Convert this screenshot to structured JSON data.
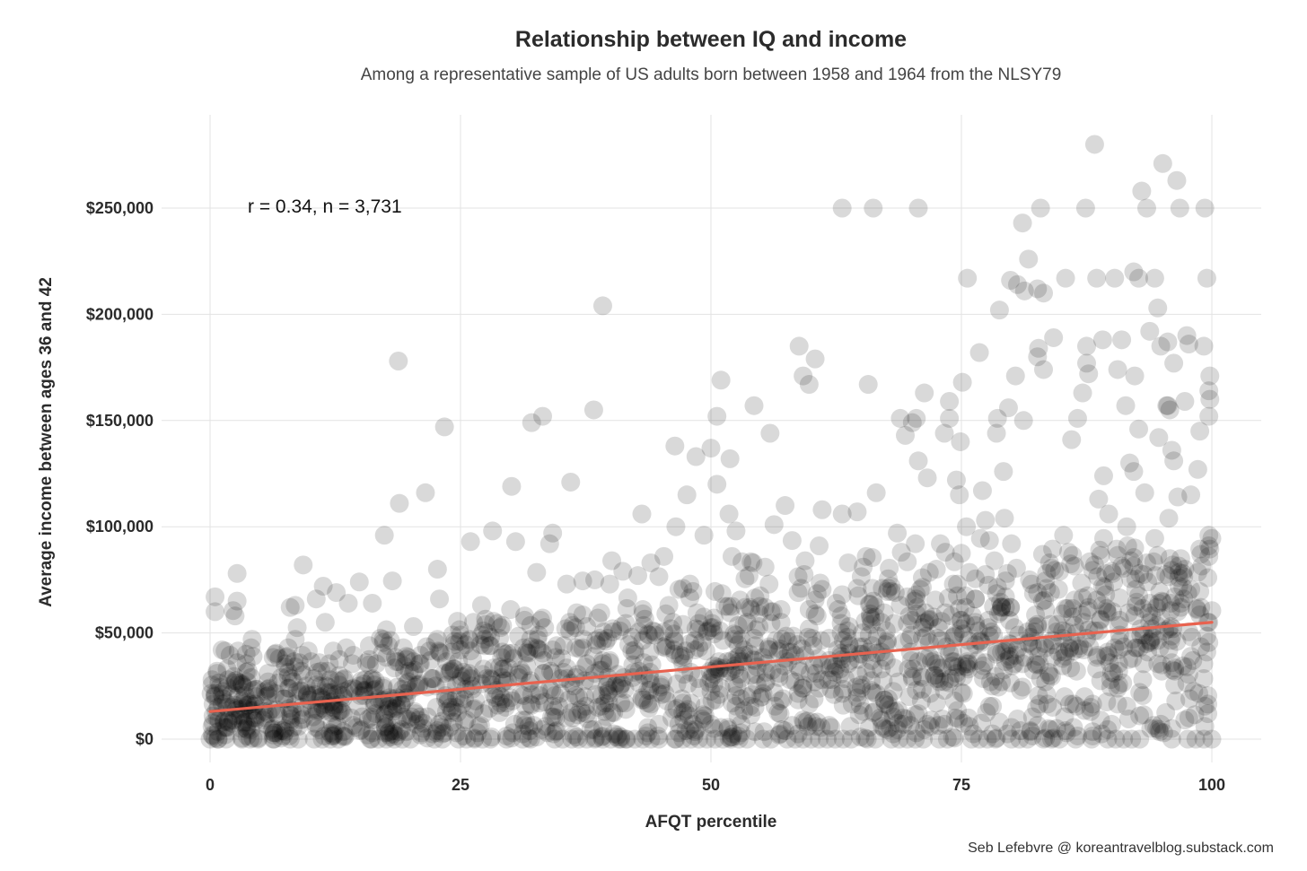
{
  "chart_data": {
    "type": "scatter",
    "title": "Relationship between IQ and income",
    "subtitle": "Among a representative sample of US adults born between 1958 and 1964 from the NLSY79",
    "xlabel": "AFQT percentile",
    "ylabel": "Average income between ages 36 and 42",
    "caption": "Seb Lefebvre @ koreantravelblog.substack.com",
    "annotation": "r = 0.34, n = 3,731",
    "xlim": [
      -3,
      103
    ],
    "ylim": [
      -12000,
      292000
    ],
    "x_ticks": [
      0,
      25,
      50,
      75,
      100
    ],
    "x_tick_labels": [
      "0",
      "25",
      "50",
      "75",
      "100"
    ],
    "y_ticks": [
      0,
      50000,
      100000,
      150000,
      200000,
      250000
    ],
    "y_tick_labels": [
      "$0",
      "$50,000",
      "$100,000",
      "$150,000",
      "$200,000",
      "$250,000"
    ],
    "grid": true,
    "point_color": "#000000",
    "point_alpha": 0.15,
    "trend_line": {
      "color": "#e8624f",
      "x": [
        0,
        100
      ],
      "y": [
        13000,
        55000
      ]
    },
    "points": [
      [
        0.5,
        67000
      ],
      [
        0.5,
        60000
      ],
      [
        2.7,
        78000
      ],
      [
        2.5,
        58000
      ],
      [
        2.7,
        65000
      ],
      [
        4.2,
        47000
      ],
      [
        6.5,
        40000
      ],
      [
        8,
        62000
      ],
      [
        8.5,
        63000
      ],
      [
        9.3,
        82000
      ],
      [
        11.3,
        72000
      ],
      [
        12.6,
        69000
      ],
      [
        13.8,
        64000
      ],
      [
        14.9,
        74000
      ],
      [
        16.2,
        64000
      ],
      [
        17.4,
        96000
      ],
      [
        18.8,
        178000
      ],
      [
        18.9,
        111000
      ],
      [
        21.5,
        116000
      ],
      [
        22.9,
        66000
      ],
      [
        23.4,
        147000
      ],
      [
        26,
        93000
      ],
      [
        28.2,
        98000
      ],
      [
        30.1,
        119000
      ],
      [
        30.5,
        93000
      ],
      [
        32.1,
        149000
      ],
      [
        33.2,
        152000
      ],
      [
        34.2,
        97000
      ],
      [
        36,
        121000
      ],
      [
        38.3,
        155000
      ],
      [
        39.2,
        204000
      ],
      [
        40.1,
        84000
      ],
      [
        41.2,
        79000
      ],
      [
        43.1,
        106000
      ],
      [
        44,
        83000
      ],
      [
        45.3,
        86000
      ],
      [
        46.4,
        138000
      ],
      [
        46.5,
        100000
      ],
      [
        47.6,
        115000
      ],
      [
        48.5,
        133000
      ],
      [
        49.3,
        96000
      ],
      [
        50,
        137000
      ],
      [
        50.6,
        152000
      ],
      [
        50.6,
        120000
      ],
      [
        51,
        169000
      ],
      [
        51.9,
        132000
      ],
      [
        51.8,
        106000
      ],
      [
        52.5,
        98000
      ],
      [
        54.3,
        157000
      ],
      [
        54.2,
        83000
      ],
      [
        55.9,
        144000
      ],
      [
        56.3,
        101000
      ],
      [
        56.2,
        60000
      ],
      [
        57.4,
        110000
      ],
      [
        58.8,
        185000
      ],
      [
        59.2,
        171000
      ],
      [
        59.8,
        167000
      ],
      [
        60.4,
        179000
      ],
      [
        61.1,
        108000
      ],
      [
        60.8,
        91000
      ],
      [
        63.1,
        250000
      ],
      [
        63.1,
        106000
      ],
      [
        64.6,
        107000
      ],
      [
        65.5,
        86000
      ],
      [
        66.2,
        250000
      ],
      [
        65.7,
        167000
      ],
      [
        66.5,
        116000
      ],
      [
        68.6,
        97000
      ],
      [
        68.9,
        151000
      ],
      [
        69.4,
        143000
      ],
      [
        70.1,
        149000
      ],
      [
        70.7,
        250000
      ],
      [
        70.5,
        151000
      ],
      [
        70.7,
        131000
      ],
      [
        71.3,
        163000
      ],
      [
        71.6,
        123000
      ],
      [
        72.9,
        92000
      ],
      [
        73.3,
        144000
      ],
      [
        73.8,
        159000
      ],
      [
        73.8,
        151000
      ],
      [
        74.5,
        122000
      ],
      [
        74.8,
        115000
      ],
      [
        74.9,
        140000
      ],
      [
        75.1,
        168000
      ],
      [
        75.6,
        217000
      ],
      [
        75.5,
        100000
      ],
      [
        77.1,
        117000
      ],
      [
        77.4,
        103000
      ],
      [
        76.8,
        182000
      ],
      [
        78.6,
        151000
      ],
      [
        78.5,
        144000
      ],
      [
        78.8,
        202000
      ],
      [
        79.2,
        126000
      ],
      [
        79.3,
        104000
      ],
      [
        79.7,
        156000
      ],
      [
        79.9,
        216000
      ],
      [
        80.4,
        171000
      ],
      [
        80.6,
        214000
      ],
      [
        81.1,
        243000
      ],
      [
        81.3,
        211000
      ],
      [
        81.2,
        150000
      ],
      [
        81.7,
        226000
      ],
      [
        82.6,
        212000
      ],
      [
        82.6,
        180000
      ],
      [
        82.7,
        184000
      ],
      [
        82.9,
        250000
      ],
      [
        83.2,
        210000
      ],
      [
        83.2,
        174000
      ],
      [
        84.2,
        189000
      ],
      [
        85.2,
        96000
      ],
      [
        85.4,
        217000
      ],
      [
        86,
        141000
      ],
      [
        86.6,
        151000
      ],
      [
        87.1,
        163000
      ],
      [
        87.4,
        250000
      ],
      [
        87.5,
        185000
      ],
      [
        87.5,
        177000
      ],
      [
        87.7,
        172000
      ],
      [
        88.3,
        280000
      ],
      [
        88.5,
        217000
      ],
      [
        88.7,
        113000
      ],
      [
        89.1,
        188000
      ],
      [
        89.2,
        124000
      ],
      [
        89.7,
        106000
      ],
      [
        90.3,
        217000
      ],
      [
        90.6,
        174000
      ],
      [
        91,
        188000
      ],
      [
        91.4,
        157000
      ],
      [
        91.5,
        100000
      ],
      [
        91.8,
        130000
      ],
      [
        92.2,
        220000
      ],
      [
        92.7,
        217000
      ],
      [
        92.3,
        171000
      ],
      [
        92.7,
        146000
      ],
      [
        92.2,
        126000
      ],
      [
        93,
        258000
      ],
      [
        93.5,
        250000
      ],
      [
        93.3,
        116000
      ],
      [
        93.8,
        192000
      ],
      [
        94.3,
        217000
      ],
      [
        94.6,
        203000
      ],
      [
        94.9,
        185000
      ],
      [
        94.7,
        142000
      ],
      [
        95.1,
        271000
      ],
      [
        95.5,
        157000
      ],
      [
        95.8,
        155000
      ],
      [
        95.7,
        104000
      ],
      [
        95.6,
        157000
      ],
      [
        95.6,
        187000
      ],
      [
        96.2,
        177000
      ],
      [
        96,
        136000
      ],
      [
        96.2,
        131000
      ],
      [
        96.5,
        263000
      ],
      [
        96.8,
        250000
      ],
      [
        96.6,
        114000
      ],
      [
        97.5,
        190000
      ],
      [
        97.3,
        159000
      ],
      [
        97.7,
        186000
      ],
      [
        97.9,
        115000
      ],
      [
        98.6,
        127000
      ],
      [
        98.8,
        145000
      ],
      [
        99.2,
        185000
      ],
      [
        99.3,
        250000
      ],
      [
        99.5,
        217000
      ],
      [
        99.7,
        152000
      ],
      [
        99.8,
        171000
      ],
      [
        99.7,
        164000
      ],
      [
        99.8,
        160000
      ],
      [
        99.7,
        86000
      ],
      [
        99.7,
        91000
      ],
      [
        99.7,
        96000
      ]
    ],
    "dense_band": {
      "note": "thousands of overlapping points concentrated between $0 and ~$60,000 across all percentiles"
    }
  }
}
